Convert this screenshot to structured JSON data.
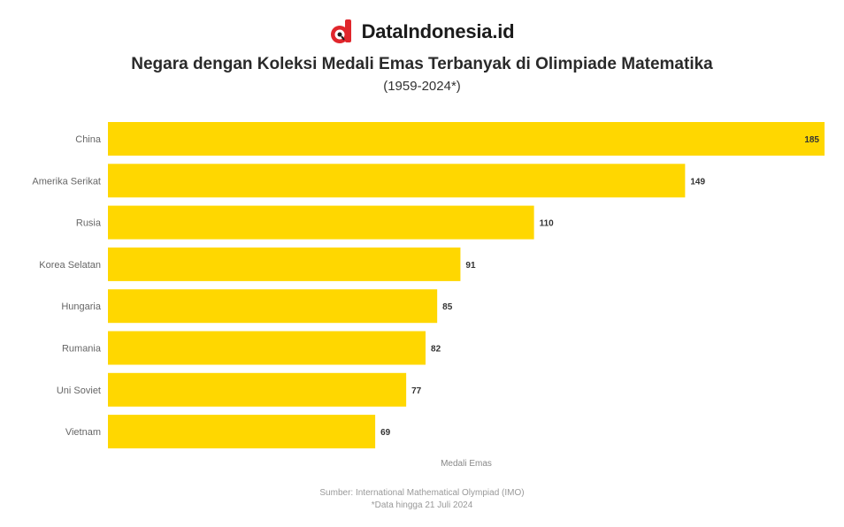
{
  "brand": {
    "name": "DataIndonesia.id",
    "logo_color": "#e0262c"
  },
  "chart_data": {
    "type": "bar",
    "orientation": "horizontal",
    "title": "Negara dengan Koleksi Medali Emas Terbanyak di Olimpiade Matematika",
    "subtitle": "(1959-2024*)",
    "xlabel": "Medali Emas",
    "ylabel": "",
    "categories": [
      "China",
      "Amerika Serikat",
      "Rusia",
      "Korea Selatan",
      "Hungaria",
      "Rumania",
      "Uni Soviet",
      "Vietnam"
    ],
    "values": [
      185,
      149,
      110,
      91,
      85,
      82,
      77,
      69
    ],
    "value_labels": [
      "185",
      "149",
      "110",
      "91",
      "85",
      "82",
      "77",
      "69"
    ],
    "xlim": [
      0,
      185
    ],
    "bar_color": "#FFD700",
    "grid": false,
    "legend": "none"
  },
  "footer": {
    "source": "Sumber: International Mathematical Olympiad (IMO)",
    "note": "*Data hingga 21 Juli 2024"
  }
}
